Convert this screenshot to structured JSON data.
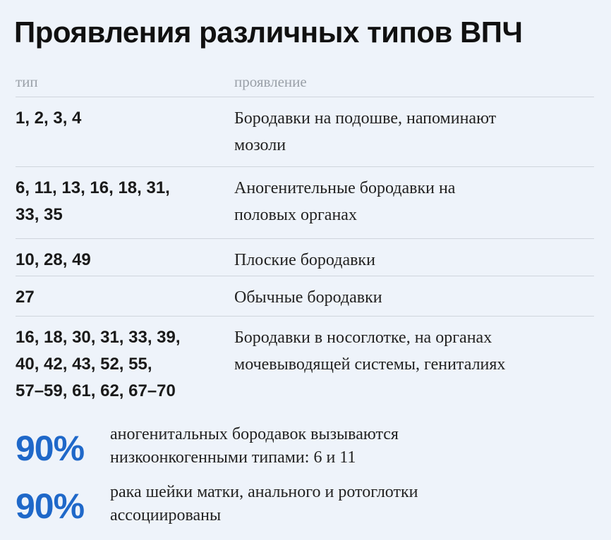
{
  "title": "Проявления различных типов ВПЧ",
  "columns": {
    "type": "тип",
    "manifestation": "проявление"
  },
  "rows": [
    {
      "types": [
        "1, 2, 3, 4"
      ],
      "desc": [
        "Бородавки на подошве, напоминают",
        "мозоли"
      ]
    },
    {
      "types": [
        "6, 11, 13, 16, 18, 31,",
        "33, 35"
      ],
      "desc": [
        "Аногенительные бородавки на",
        "половых органах"
      ]
    },
    {
      "types": [
        "10, 28, 49"
      ],
      "desc": [
        "Плоские бородавки"
      ]
    },
    {
      "types": [
        "27"
      ],
      "desc": [
        "Обычные бородавки"
      ]
    },
    {
      "types": [
        "16, 18, 30, 31, 33, 39,",
        "40, 42, 43, 52, 55,",
        "57–59, 61, 62, 67–70"
      ],
      "desc": [
        "Бородавки в носоглотке, на органах",
        "мочевыводящей системы, гениталиях"
      ]
    }
  ],
  "stats": [
    {
      "value": "90%",
      "text": [
        "аногенитальных бородавок вызываются",
        "низкоонкогенными типами: 6 и 11"
      ]
    },
    {
      "value": "90%",
      "text": [
        "рака шейки матки, анального и ротоглотки",
        "ассоциированы"
      ]
    }
  ],
  "colors": {
    "background": "#eef3fa",
    "accent": "#1f68c9",
    "muted": "#9aa0a8",
    "divider": "#cfd5dd"
  }
}
